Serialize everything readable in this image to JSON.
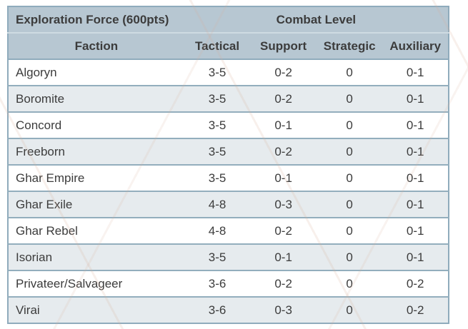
{
  "chart_data": {
    "type": "table",
    "title": "Exploration Force (600pts)",
    "group_header": "Combat Level",
    "columns": [
      "Faction",
      "Tactical",
      "Support",
      "Strategic",
      "Auxiliary"
    ],
    "rows": [
      [
        "Algoryn",
        "3-5",
        "0-2",
        "0",
        "0-1"
      ],
      [
        "Boromite",
        "3-5",
        "0-2",
        "0",
        "0-1"
      ],
      [
        "Concord",
        "3-5",
        "0-1",
        "0",
        "0-1"
      ],
      [
        "Freeborn",
        "3-5",
        "0-2",
        "0",
        "0-1"
      ],
      [
        "Ghar Empire",
        "3-5",
        "0-1",
        "0",
        "0-1"
      ],
      [
        "Ghar Exile",
        "4-8",
        "0-3",
        "0",
        "0-1"
      ],
      [
        "Ghar Rebel",
        "4-8",
        "0-2",
        "0",
        "0-1"
      ],
      [
        "Isorian",
        "3-5",
        "0-1",
        "0",
        "0-1"
      ],
      [
        "Privateer/Salvageer",
        "3-6",
        "0-2",
        "0",
        "0-2"
      ],
      [
        "Virai",
        "3-6",
        "0-3",
        "0",
        "0-2"
      ]
    ],
    "colors": {
      "header_bg": "#b7c7d2",
      "row_alt_bg": "#e6ebee",
      "border": "#8fabbc",
      "text": "#3c3c3c"
    }
  }
}
